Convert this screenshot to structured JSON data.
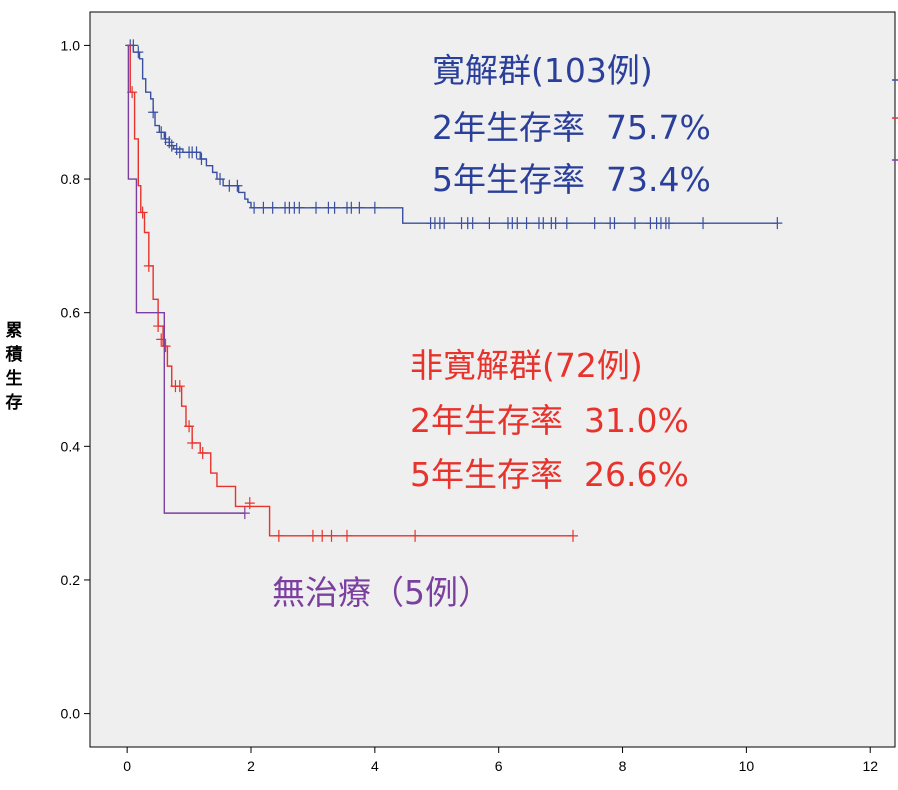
{
  "chart_data": {
    "type": "line",
    "title": "",
    "xlabel": "",
    "ylabel": "累積生存",
    "xlim": [
      -0.6,
      12.4
    ],
    "ylim": [
      -0.05,
      1.05
    ],
    "xticks": [
      0,
      2,
      4,
      6,
      8,
      10,
      12
    ],
    "yticks": [
      0.0,
      0.2,
      0.4,
      0.6,
      0.8,
      1.0
    ],
    "xtick_labels": [
      "0",
      "2",
      "4",
      "6",
      "8",
      "10",
      "12"
    ],
    "ytick_labels": [
      "0.0",
      "0.2",
      "0.4",
      "0.6",
      "0.8",
      "1.0"
    ],
    "grid": false,
    "background": "#efefef",
    "series": [
      {
        "name": "寛解群(103例)",
        "color": "#3a4fa0",
        "steps": [
          [
            0,
            1.0
          ],
          [
            0.1,
            0.99
          ],
          [
            0.2,
            0.98
          ],
          [
            0.25,
            0.95
          ],
          [
            0.3,
            0.93
          ],
          [
            0.38,
            0.92
          ],
          [
            0.42,
            0.9
          ],
          [
            0.45,
            0.88
          ],
          [
            0.52,
            0.87
          ],
          [
            0.6,
            0.86
          ],
          [
            0.68,
            0.85
          ],
          [
            0.75,
            0.845
          ],
          [
            0.9,
            0.84
          ],
          [
            1.18,
            0.83
          ],
          [
            1.28,
            0.82
          ],
          [
            1.38,
            0.81
          ],
          [
            1.45,
            0.8
          ],
          [
            1.55,
            0.79
          ],
          [
            1.8,
            0.78
          ],
          [
            1.9,
            0.77
          ],
          [
            1.95,
            0.765
          ],
          [
            2.0,
            0.757
          ],
          [
            4.45,
            0.757
          ],
          [
            4.45,
            0.734
          ],
          [
            10.5,
            0.734
          ]
        ],
        "censored": [
          [
            0.05,
            1.0
          ],
          [
            0.1,
            1.0
          ],
          [
            0.18,
            0.99
          ],
          [
            0.42,
            0.9
          ],
          [
            0.55,
            0.87
          ],
          [
            0.62,
            0.86
          ],
          [
            0.68,
            0.855
          ],
          [
            0.72,
            0.85
          ],
          [
            0.8,
            0.845
          ],
          [
            0.85,
            0.84
          ],
          [
            1.0,
            0.84
          ],
          [
            1.05,
            0.84
          ],
          [
            1.12,
            0.84
          ],
          [
            1.2,
            0.83
          ],
          [
            1.5,
            0.8
          ],
          [
            1.65,
            0.79
          ],
          [
            1.78,
            0.79
          ],
          [
            2.05,
            0.757
          ],
          [
            2.2,
            0.757
          ],
          [
            2.35,
            0.757
          ],
          [
            2.55,
            0.757
          ],
          [
            2.62,
            0.757
          ],
          [
            2.7,
            0.757
          ],
          [
            2.78,
            0.757
          ],
          [
            3.05,
            0.757
          ],
          [
            3.25,
            0.757
          ],
          [
            3.35,
            0.757
          ],
          [
            3.55,
            0.757
          ],
          [
            3.62,
            0.757
          ],
          [
            3.75,
            0.757
          ],
          [
            4.0,
            0.757
          ],
          [
            4.9,
            0.734
          ],
          [
            4.97,
            0.734
          ],
          [
            5.05,
            0.734
          ],
          [
            5.12,
            0.734
          ],
          [
            5.4,
            0.734
          ],
          [
            5.5,
            0.734
          ],
          [
            5.58,
            0.734
          ],
          [
            5.85,
            0.734
          ],
          [
            6.15,
            0.734
          ],
          [
            6.22,
            0.734
          ],
          [
            6.3,
            0.734
          ],
          [
            6.45,
            0.734
          ],
          [
            6.65,
            0.734
          ],
          [
            6.72,
            0.734
          ],
          [
            6.85,
            0.734
          ],
          [
            6.92,
            0.734
          ],
          [
            7.1,
            0.734
          ],
          [
            7.55,
            0.734
          ],
          [
            7.8,
            0.734
          ],
          [
            7.87,
            0.734
          ],
          [
            8.2,
            0.734
          ],
          [
            8.45,
            0.734
          ],
          [
            8.55,
            0.734
          ],
          [
            8.62,
            0.734
          ],
          [
            8.7,
            0.734
          ],
          [
            8.75,
            0.734
          ],
          [
            9.3,
            0.734
          ],
          [
            10.5,
            0.734
          ]
        ]
      },
      {
        "name": "非寛解群(72例)",
        "color": "#e8322c",
        "steps": [
          [
            0,
            1.0
          ],
          [
            0.05,
            0.93
          ],
          [
            0.12,
            0.86
          ],
          [
            0.18,
            0.79
          ],
          [
            0.22,
            0.75
          ],
          [
            0.28,
            0.72
          ],
          [
            0.35,
            0.67
          ],
          [
            0.42,
            0.62
          ],
          [
            0.5,
            0.58
          ],
          [
            0.58,
            0.55
          ],
          [
            0.65,
            0.52
          ],
          [
            0.72,
            0.49
          ],
          [
            0.88,
            0.46
          ],
          [
            0.95,
            0.43
          ],
          [
            1.05,
            0.405
          ],
          [
            1.18,
            0.39
          ],
          [
            1.35,
            0.36
          ],
          [
            1.45,
            0.34
          ],
          [
            1.75,
            0.31
          ],
          [
            2.1,
            0.31
          ],
          [
            2.3,
            0.266
          ],
          [
            7.2,
            0.266
          ]
        ],
        "censored": [
          [
            0.08,
            0.93
          ],
          [
            0.25,
            0.75
          ],
          [
            0.35,
            0.67
          ],
          [
            0.5,
            0.58
          ],
          [
            0.55,
            0.56
          ],
          [
            0.62,
            0.55
          ],
          [
            0.78,
            0.49
          ],
          [
            0.85,
            0.49
          ],
          [
            1.0,
            0.43
          ],
          [
            1.05,
            0.405
          ],
          [
            1.22,
            0.39
          ],
          [
            1.98,
            0.315
          ],
          [
            2.45,
            0.266
          ],
          [
            3.0,
            0.266
          ],
          [
            3.15,
            0.266
          ],
          [
            3.3,
            0.266
          ],
          [
            3.55,
            0.266
          ],
          [
            4.65,
            0.266
          ],
          [
            7.2,
            0.266
          ]
        ]
      },
      {
        "name": "無治療（5例）",
        "color": "#7b3fa0",
        "steps": [
          [
            0,
            1.0
          ],
          [
            0.02,
            0.8
          ],
          [
            0.15,
            0.6
          ],
          [
            0.6,
            0.6
          ],
          [
            0.6,
            0.3
          ],
          [
            1.9,
            0.3
          ]
        ],
        "censored": [
          [
            1.9,
            0.3
          ]
        ]
      }
    ],
    "annotations": [
      {
        "key": "remission",
        "lines": [
          "寛解群(103例)",
          "2年生存率  75.7%",
          "5年生存率  73.4%"
        ],
        "color": "#2a3f9a"
      },
      {
        "key": "nonremission",
        "lines": [
          "非寛解群(72例)",
          "2年生存率  31.0%",
          "5年生存率  26.6%"
        ],
        "color": "#e8322c"
      },
      {
        "key": "untreated",
        "lines": [
          "無治療（5例）"
        ],
        "color": "#7b3fa0"
      }
    ]
  }
}
